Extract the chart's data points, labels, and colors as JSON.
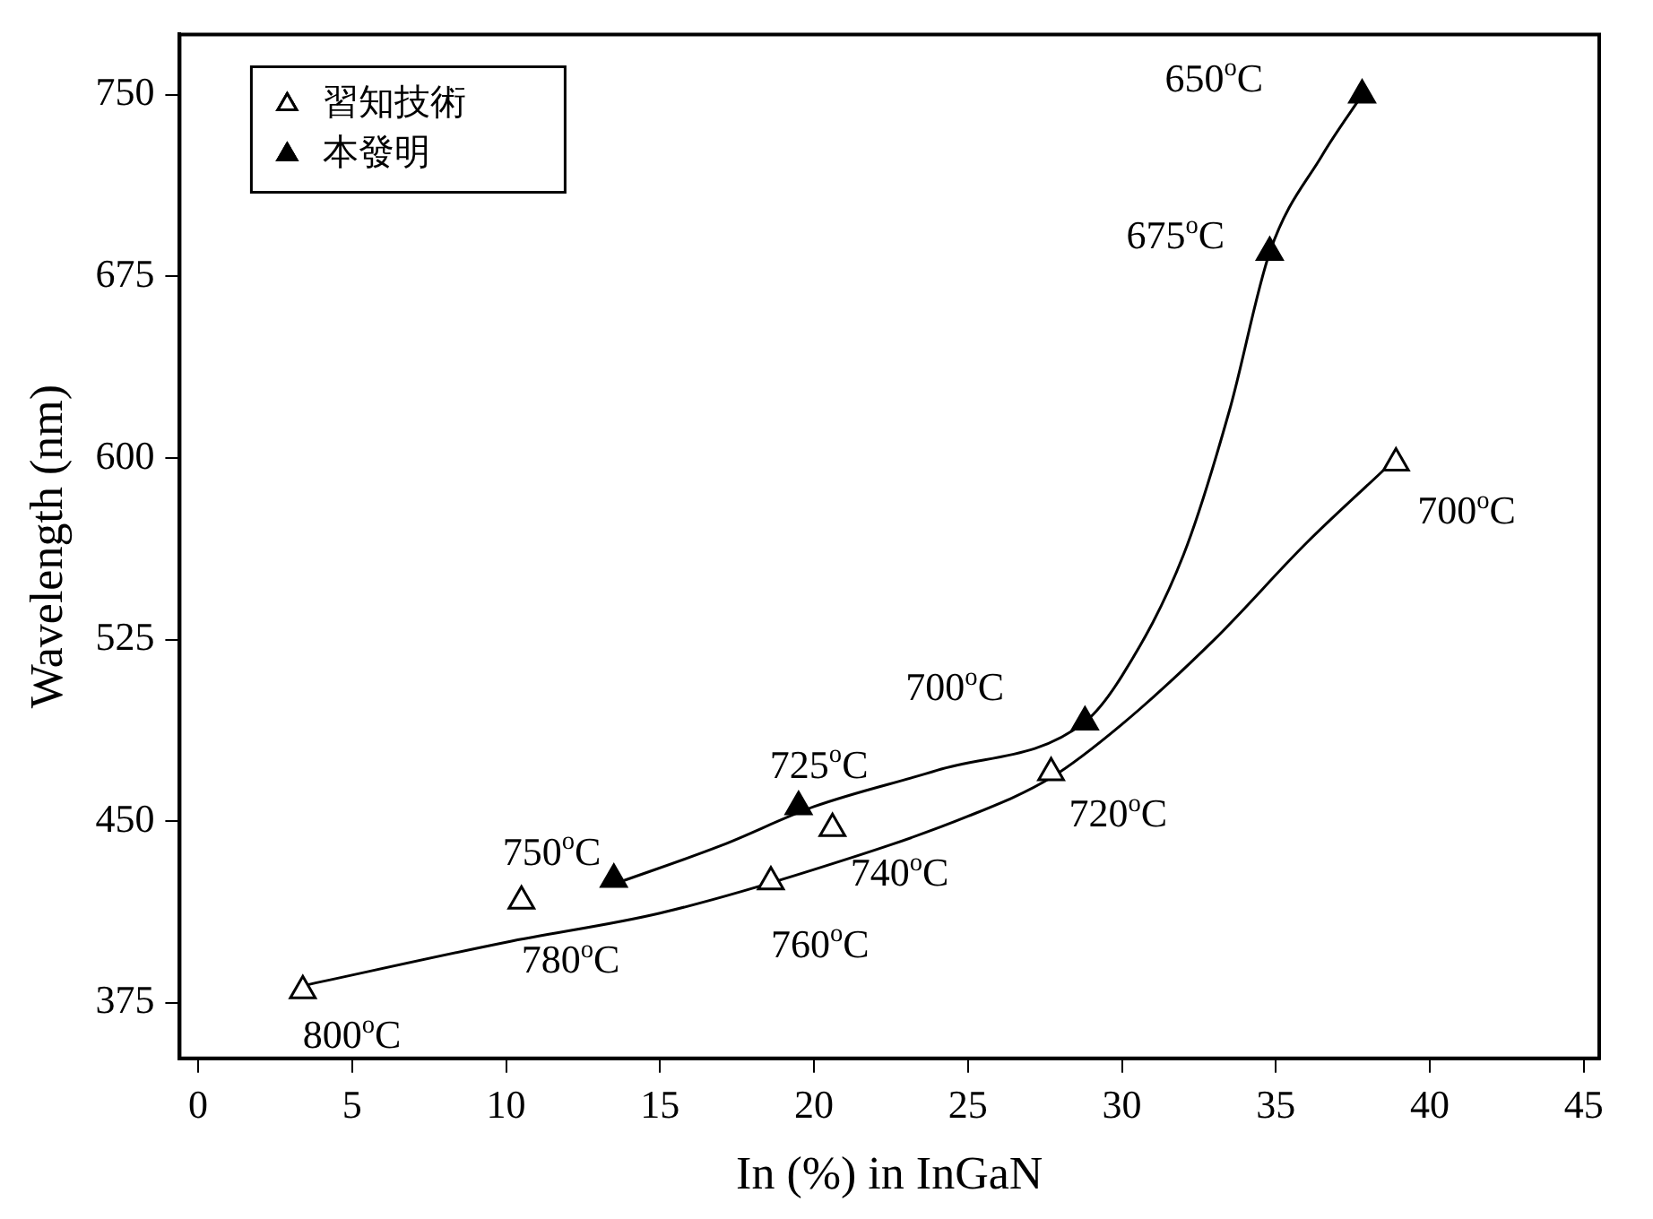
{
  "chart_data": {
    "type": "scatter",
    "xlabel": "In (%) in InGaN",
    "ylabel": "Wavelength (nm)",
    "xlim": [
      -0.6,
      45.5
    ],
    "xticks": [
      0,
      5,
      10,
      15,
      20,
      25,
      30,
      35,
      40,
      45
    ],
    "ylim": [
      352,
      775
    ],
    "yticks": [
      375,
      450,
      525,
      600,
      675,
      750
    ],
    "grid": false,
    "legend": "top left",
    "marker": "triangle",
    "series": [
      {
        "name": "習知技術",
        "color": "#ffffff",
        "x": [
          3.4,
          10.5,
          18.6,
          20.6,
          27.7,
          38.9
        ],
        "values": [
          380,
          417,
          425,
          447,
          470,
          598
        ]
      },
      {
        "name": "本發明",
        "color": "#000000",
        "x": [
          13.5,
          19.5,
          28.8,
          34.8,
          37.8
        ],
        "values": [
          426,
          456,
          491,
          685,
          750
        ]
      },
      {
        "type": "line",
        "color": "#000000",
        "marker": "none",
        "x": [
          3.4,
          10,
          15,
          20,
          25,
          27.7,
          30,
          33,
          36,
          38.5
        ],
        "values": [
          382,
          400,
          412,
          430,
          452,
          468,
          490,
          525,
          565,
          595
        ]
      },
      {
        "type": "line",
        "color": "#000000",
        "marker": "none",
        "x": [
          13.5,
          17,
          20,
          24,
          28.8,
          30,
          32,
          33.5,
          34.8,
          36.5,
          37.8
        ],
        "values": [
          424,
          440,
          456,
          471,
          491,
          510,
          560,
          620,
          685,
          725,
          750
        ]
      }
    ],
    "annotations": [
      {
        "text": "800$^{o}$C",
        "x": 3.4,
        "y": 380
      },
      {
        "text": "780$^{o}$C",
        "x": 10.5,
        "y": 417
      },
      {
        "text": "760$^{o}$C",
        "x": 18.6,
        "y": 425
      },
      {
        "text": "740$^{o}$C",
        "x": 20.6,
        "y": 447
      },
      {
        "text": "720$^{o}$C",
        "x": 27.7,
        "y": 470
      },
      {
        "text": "700$^{o}$C",
        "x": 38.9,
        "y": 598
      },
      {
        "text": "750$^{o}$C",
        "x": 13.5,
        "y": 426
      },
      {
        "text": "725$^{o}$C",
        "x": 19.5,
        "y": 456
      },
      {
        "text": "700$^{o}$C",
        "x": 28.8,
        "y": 491
      },
      {
        "text": "675$^{o}$C",
        "x": 34.8,
        "y": 685
      },
      {
        "text": "650$^{o}$C",
        "x": 37.8,
        "y": 750
      }
    ]
  }
}
